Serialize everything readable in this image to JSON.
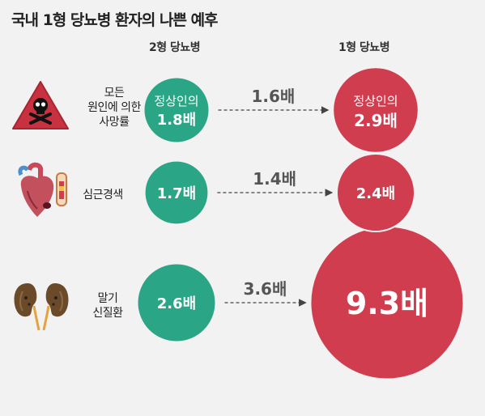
{
  "title": "국내 1형 당뇨병 환자의 나쁜 예후",
  "columns": {
    "left": "2형 당뇨병",
    "right": "1형 당뇨병"
  },
  "icons": {
    "row1": "skull-warning-icon",
    "row2": "heart-artery-icon",
    "row3": "kidneys-icon"
  },
  "colors": {
    "type2": "#2aa585",
    "type1": "#d03d4e",
    "arrow": "#444444",
    "ratio_text": "#555555",
    "background": "#f2f2f2"
  },
  "chart_data": {
    "type": "bubble",
    "title": "국내 1형 당뇨병 환자의 나쁜 예후",
    "series": [
      {
        "name": "2형 당뇨병",
        "color": "#2aa585"
      },
      {
        "name": "1형 당뇨병",
        "color": "#d03d4e"
      }
    ],
    "rows": [
      {
        "category": "모든\n원인에 의한\n사망률",
        "type2": {
          "value": 1.8,
          "prefix": "정상인의",
          "label": "1.8배"
        },
        "type1": {
          "value": 2.9,
          "prefix": "정상인의",
          "label": "2.9배"
        },
        "ratio": {
          "value": 1.6,
          "label": "1.6배"
        }
      },
      {
        "category": "심근경색",
        "type2": {
          "value": 1.7,
          "prefix": "",
          "label": "1.7배"
        },
        "type1": {
          "value": 2.4,
          "prefix": "",
          "label": "2.4배"
        },
        "ratio": {
          "value": 1.4,
          "label": "1.4배"
        }
      },
      {
        "category": "말기\n신질환",
        "type2": {
          "value": 2.6,
          "prefix": "",
          "label": "2.6배"
        },
        "type1": {
          "value": 9.3,
          "prefix": "",
          "label": "9.3배"
        },
        "ratio": {
          "value": 3.6,
          "label": "3.6배"
        }
      }
    ]
  }
}
